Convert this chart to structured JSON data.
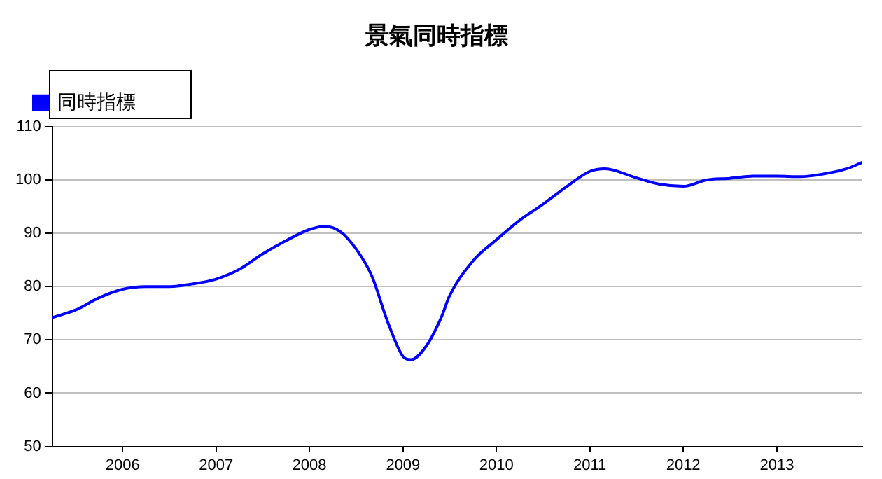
{
  "chart_data": {
    "type": "line",
    "title": "景氣同時指標",
    "x": [
      "2005-04",
      "2005-07",
      "2005-10",
      "2006-01",
      "2006-04",
      "2006-07",
      "2006-10",
      "2007-01",
      "2007-04",
      "2007-07",
      "2007-10",
      "2008-01",
      "2008-03",
      "2008-05",
      "2008-07",
      "2008-09",
      "2008-11",
      "2009-01",
      "2009-02",
      "2009-04",
      "2009-06",
      "2009-07",
      "2009-10",
      "2010-01",
      "2010-04",
      "2010-07",
      "2010-10",
      "2011-01",
      "2011-03",
      "2011-07",
      "2011-10",
      "2012-01",
      "2012-04",
      "2012-07",
      "2012-10",
      "2013-01",
      "2013-04",
      "2013-07",
      "2013-10",
      "2013-12"
    ],
    "series": [
      {
        "name": "同時指標",
        "color": "#0000ff",
        "values": [
          74.2,
          75.6,
          77.9,
          79.5,
          80.0,
          80.0,
          80.5,
          81.4,
          83.2,
          86.1,
          88.6,
          90.7,
          91.3,
          90.3,
          87.1,
          82.0,
          73.5,
          66.9,
          66.3,
          68.8,
          74.4,
          78.2,
          84.8,
          88.8,
          92.4,
          95.4,
          98.7,
          101.6,
          102.1,
          100.4,
          99.2,
          98.8,
          100.0,
          100.3,
          100.7,
          100.7,
          100.6,
          101.1,
          102.1,
          103.3
        ]
      }
    ],
    "xlim": [
      "2005-04",
      "2013-12"
    ],
    "xticks": [
      "2006",
      "2007",
      "2008",
      "2009",
      "2010",
      "2011",
      "2012",
      "2013"
    ],
    "ylim": [
      50,
      110
    ],
    "yticks": [
      50,
      60,
      70,
      80,
      90,
      100,
      110
    ],
    "grid": "y",
    "legend": "top left",
    "marker": "none",
    "line_style": "solid"
  }
}
